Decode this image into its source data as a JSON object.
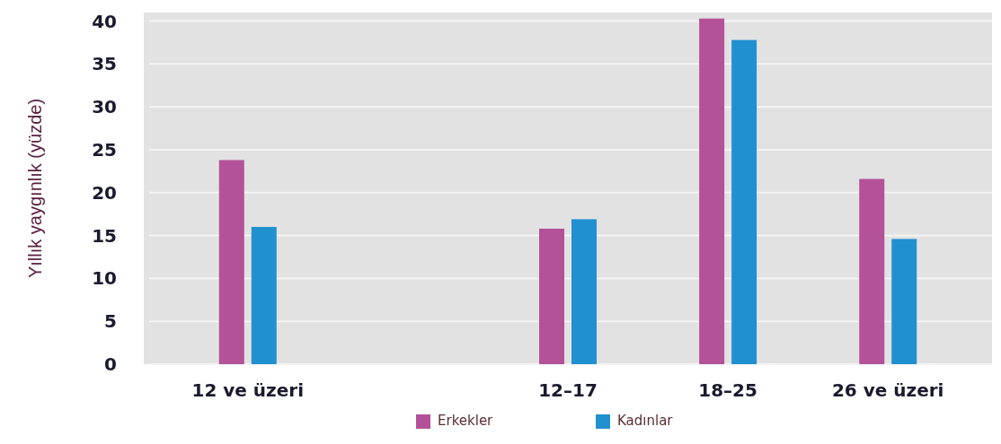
{
  "chart_data": {
    "type": "bar",
    "ylabel": "Yıllık yaygınlık (yüzde)",
    "categories": [
      "12 ve üzeri",
      null,
      "12–17",
      "18–25",
      "26 ve üzeri"
    ],
    "series": [
      {
        "name": "Erkekler",
        "color": "#b35299",
        "values": [
          23.8,
          null,
          15.8,
          40.3,
          21.6
        ]
      },
      {
        "name": "Kadınlar",
        "color": "#2190d0",
        "values": [
          16.0,
          null,
          16.9,
          37.8,
          14.6
        ]
      }
    ],
    "ylim": [
      0,
      41
    ],
    "yticks": [
      0,
      5,
      10,
      15,
      20,
      25,
      30,
      35,
      40
    ],
    "grid": "y",
    "legend": "bottom"
  }
}
